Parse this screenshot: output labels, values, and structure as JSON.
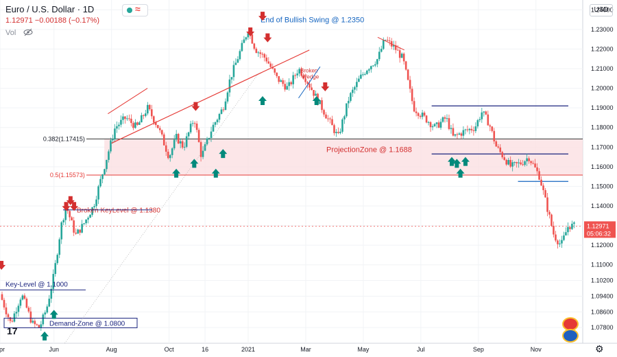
{
  "header": {
    "symbol": "Euro / U.S. Dollar",
    "interval": "1D",
    "title_full": "Euro / U.S. Dollar · 1D",
    "last": "1.12971",
    "change": "−0.00188",
    "change_pct": "(−0.17%)",
    "quote_full": "1.12971  −0.00188  (−0.17%)",
    "vol_label": "Vol"
  },
  "currency_button": "USD",
  "watermark": "17",
  "price_label": {
    "price": "1.12971",
    "countdown": "05:06:32"
  },
  "colors": {
    "up": "#26a69a",
    "down": "#ef5350",
    "annot_red": "#d32f2f",
    "annot_blue": "#1565c0",
    "navy": "#1a237e",
    "zone": "#fbe0e2"
  },
  "chart_data": {
    "type": "candlestick",
    "symbol": "EURUSD",
    "interval": "1D",
    "ylim": [
      1.07,
      1.245
    ],
    "y_ticks": [
      1.078,
      1.086,
      1.094,
      1.102,
      1.11,
      1.12,
      1.13,
      1.14,
      1.15,
      1.16,
      1.17,
      1.18,
      1.19,
      1.2,
      1.21,
      1.22,
      1.23,
      1.24
    ],
    "y_tick_labels": [
      "1.07800",
      "1.08600",
      "1.09400",
      "1.10200",
      "1.11000",
      "1.12000",
      "1.13000",
      "1.14000",
      "1.15000",
      "1.16000",
      "1.17000",
      "1.18000",
      "1.19000",
      "1.20000",
      "1.21000",
      "1.22000",
      "1.23000",
      "1.24000"
    ],
    "x_tick_labels": [
      "Apr",
      "Jun",
      "Aug",
      "Oct",
      "16",
      "2021",
      "Mar",
      "May",
      "Jul",
      "Sep",
      "Nov"
    ],
    "x_tick_positions": [
      0.0,
      0.75,
      1.55,
      2.35,
      2.85,
      3.45,
      4.25,
      5.05,
      5.85,
      6.65,
      7.45
    ],
    "xlim": [
      0,
      8.1
    ],
    "price_path": [
      [
        0.0,
        1.095
      ],
      [
        0.15,
        1.08
      ],
      [
        0.3,
        1.095
      ],
      [
        0.45,
        1.08
      ],
      [
        0.55,
        1.078
      ],
      [
        0.65,
        1.088
      ],
      [
        0.75,
        1.105
      ],
      [
        0.85,
        1.13
      ],
      [
        0.92,
        1.14
      ],
      [
        1.05,
        1.125
      ],
      [
        1.15,
        1.13
      ],
      [
        1.3,
        1.14
      ],
      [
        1.45,
        1.16
      ],
      [
        1.6,
        1.18
      ],
      [
        1.75,
        1.185
      ],
      [
        1.9,
        1.18
      ],
      [
        2.05,
        1.19
      ],
      [
        2.2,
        1.18
      ],
      [
        2.35,
        1.165
      ],
      [
        2.45,
        1.175
      ],
      [
        2.55,
        1.17
      ],
      [
        2.7,
        1.185
      ],
      [
        2.8,
        1.165
      ],
      [
        2.95,
        1.18
      ],
      [
        3.1,
        1.19
      ],
      [
        3.2,
        1.205
      ],
      [
        3.3,
        1.215
      ],
      [
        3.45,
        1.23
      ],
      [
        3.55,
        1.22
      ],
      [
        3.7,
        1.215
      ],
      [
        3.85,
        1.205
      ],
      [
        4.0,
        1.2
      ],
      [
        4.15,
        1.21
      ],
      [
        4.25,
        1.205
      ],
      [
        4.4,
        1.195
      ],
      [
        4.55,
        1.185
      ],
      [
        4.7,
        1.175
      ],
      [
        4.85,
        1.195
      ],
      [
        5.0,
        1.205
      ],
      [
        5.1,
        1.21
      ],
      [
        5.25,
        1.215
      ],
      [
        5.35,
        1.225
      ],
      [
        5.5,
        1.22
      ],
      [
        5.6,
        1.215
      ],
      [
        5.75,
        1.19
      ],
      [
        5.9,
        1.185
      ],
      [
        6.05,
        1.18
      ],
      [
        6.2,
        1.185
      ],
      [
        6.3,
        1.175
      ],
      [
        6.45,
        1.178
      ],
      [
        6.6,
        1.18
      ],
      [
        6.7,
        1.188
      ],
      [
        6.8,
        1.182
      ],
      [
        6.9,
        1.17
      ],
      [
        7.0,
        1.165
      ],
      [
        7.1,
        1.16
      ],
      [
        7.25,
        1.162
      ],
      [
        7.35,
        1.165
      ],
      [
        7.5,
        1.155
      ],
      [
        7.6,
        1.14
      ],
      [
        7.7,
        1.125
      ],
      [
        7.8,
        1.12
      ],
      [
        7.9,
        1.13
      ],
      [
        8.0,
        1.1297
      ]
    ],
    "annotations": [
      {
        "kind": "fib",
        "label": "0.382(1.17415)",
        "price": 1.17415
      },
      {
        "kind": "fib",
        "label": "0.5(1.15573)",
        "price": 1.15573
      },
      {
        "kind": "zone_label",
        "text": "ProjectionZone @ 1.1688",
        "price": 1.1688
      },
      {
        "kind": "text_label",
        "text": "End of Bullish Swing @ 1.2350",
        "price": 1.235
      },
      {
        "kind": "text_label",
        "text": "Broken KeyLevel @ 1.1380",
        "price": 1.138
      },
      {
        "kind": "text_label",
        "text": "Key-Level @ 1.1000",
        "price": 1.1
      },
      {
        "kind": "text_label",
        "text": "Demand-Zone @ 1.0800",
        "price": 1.08
      },
      {
        "kind": "text_label",
        "text": "Broken Wedge",
        "price": 1.208
      }
    ],
    "horizontal_lines": [
      {
        "price": 1.191,
        "color": "#1a237e"
      },
      {
        "price": 1.1665,
        "color": "#1a237e"
      },
      {
        "price": 1.1525,
        "color": "#1565c0"
      }
    ],
    "last_price": 1.12971
  }
}
